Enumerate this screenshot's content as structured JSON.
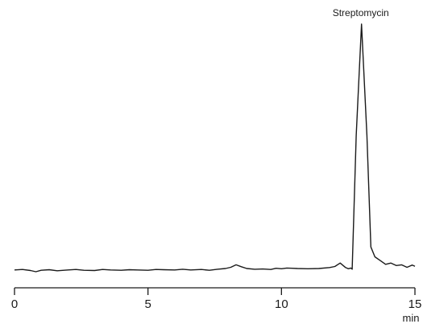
{
  "chart_data": {
    "type": "line",
    "title": "",
    "xlabel": "min",
    "ylabel": "",
    "xlim": [
      0,
      15
    ],
    "ylim": [
      0,
      1
    ],
    "grid": false,
    "x_ticks": [
      0,
      5,
      10,
      15
    ],
    "x_tick_labels": [
      "0",
      "5",
      "10",
      "15"
    ],
    "annotations": [
      {
        "text": "Streptomycin",
        "x": 13.0,
        "y": 1.0
      }
    ],
    "series": [
      {
        "x": [
          0.0,
          0.3,
          0.6,
          0.8,
          1.0,
          1.3,
          1.6,
          2.0,
          2.3,
          2.6,
          3.0,
          3.3,
          3.6,
          4.0,
          4.3,
          4.6,
          5.0,
          5.3,
          5.6,
          6.0,
          6.3,
          6.6,
          7.0,
          7.3,
          7.6,
          7.9,
          8.1,
          8.3,
          8.5,
          8.7,
          9.0,
          9.3,
          9.6,
          9.8,
          10.0,
          10.2,
          10.4,
          10.6,
          11.0,
          11.4,
          11.8,
          12.0,
          12.2,
          12.4,
          12.5,
          12.6,
          12.65,
          12.8,
          13.0,
          13.2,
          13.35,
          13.5,
          13.7,
          13.9,
          14.1,
          14.3,
          14.5,
          14.7,
          14.9,
          15.0
        ],
        "y": [
          0.007,
          0.009,
          0.005,
          0.0,
          0.006,
          0.008,
          0.004,
          0.007,
          0.009,
          0.006,
          0.005,
          0.009,
          0.007,
          0.006,
          0.008,
          0.007,
          0.006,
          0.009,
          0.008,
          0.007,
          0.01,
          0.007,
          0.009,
          0.006,
          0.01,
          0.013,
          0.018,
          0.028,
          0.02,
          0.013,
          0.01,
          0.011,
          0.009,
          0.014,
          0.012,
          0.015,
          0.014,
          0.013,
          0.012,
          0.013,
          0.017,
          0.021,
          0.035,
          0.017,
          0.012,
          0.015,
          0.01,
          0.55,
          1.0,
          0.55,
          0.1,
          0.06,
          0.045,
          0.03,
          0.035,
          0.025,
          0.028,
          0.018,
          0.027,
          0.022
        ]
      }
    ]
  }
}
